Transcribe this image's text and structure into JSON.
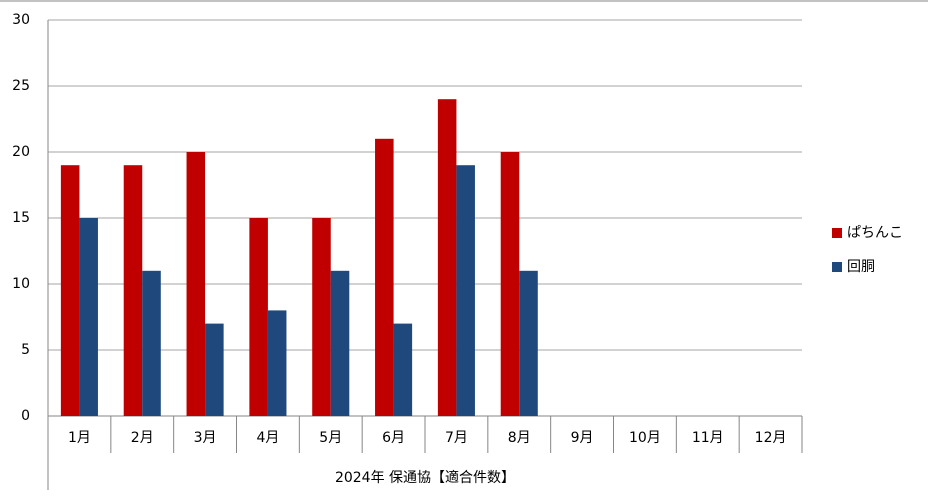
{
  "chart_data": {
    "type": "bar",
    "categories": [
      "1月",
      "2月",
      "3月",
      "4月",
      "5月",
      "6月",
      "7月",
      "8月",
      "9月",
      "10月",
      "11月",
      "12月"
    ],
    "category_group": "2024年 保通協【適合件数】",
    "series": [
      {
        "name": "ぱちんこ",
        "color": "#c00000",
        "values": [
          19,
          19,
          20,
          15,
          15,
          21,
          24,
          20,
          null,
          null,
          null,
          null
        ]
      },
      {
        "name": "回胴",
        "color": "#1f497d",
        "values": [
          15,
          11,
          7,
          8,
          11,
          7,
          19,
          11,
          null,
          null,
          null,
          null
        ]
      }
    ],
    "ylim": [
      0,
      30
    ],
    "yticks": [
      0,
      5,
      10,
      15,
      20,
      25,
      30
    ],
    "grid": true,
    "legend": "right"
  }
}
